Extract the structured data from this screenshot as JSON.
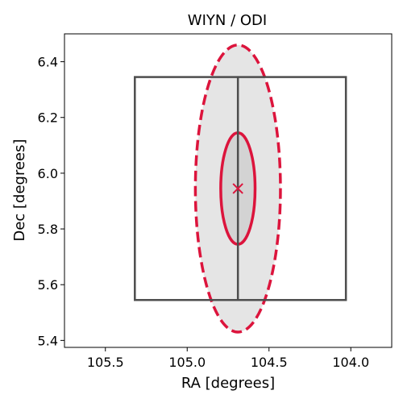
{
  "chart_data": {
    "type": "scatter",
    "title": "WIYN / ODI",
    "xlabel": "RA [degrees]",
    "ylabel": "Dec [degrees]",
    "xlim": [
      105.75,
      103.75
    ],
    "ylim": [
      5.375,
      6.5
    ],
    "x_inverted": true,
    "xticks": [
      105.5,
      105.0,
      104.5,
      104.0
    ],
    "xtick_labels": [
      "105.5",
      "105.0",
      "104.5",
      "104.0"
    ],
    "yticks": [
      5.4,
      5.6,
      5.8,
      6.0,
      6.2,
      6.4
    ],
    "ytick_labels": [
      "5.4",
      "5.6",
      "5.8",
      "6.0",
      "6.2",
      "6.4"
    ],
    "grid": false,
    "center": {
      "x": 104.69,
      "y": 5.945
    },
    "outer_ellipse": {
      "cx": 104.69,
      "cy": 5.945,
      "rx": 0.26,
      "ry": 0.515,
      "style": "dashed",
      "color": "#dc143c",
      "fill": "#e5e5e5"
    },
    "inner_ellipse": {
      "cx": 104.69,
      "cy": 5.945,
      "rx": 0.105,
      "ry": 0.2,
      "style": "solid",
      "color": "#dc143c",
      "fill": "#d3d3d3"
    },
    "footprint": {
      "color": "#4d4d4d",
      "rect": {
        "x0": 105.32,
        "x1": 104.03,
        "y0": 5.545,
        "y1": 6.345
      },
      "divider_x": 104.69
    },
    "marker": {
      "x": 104.69,
      "y": 5.945,
      "symbol": "x",
      "color": "#dc143c"
    }
  }
}
